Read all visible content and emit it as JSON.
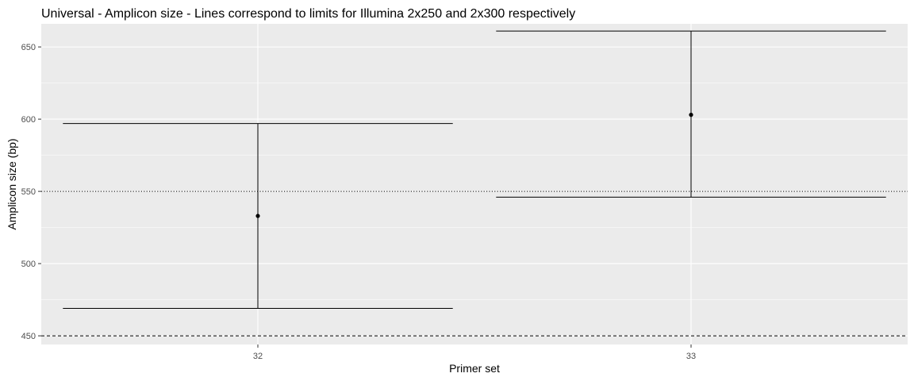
{
  "chart_data": {
    "type": "errorbar",
    "title": "Universal - Amplicon size - Lines correspond to limits for Illumina 2x250 and 2x300 respectively",
    "xlabel": "Primer set",
    "ylabel": "Amplicon size (bp)",
    "categories": [
      "32",
      "33"
    ],
    "points": [
      {
        "x": "32",
        "mean": 533,
        "lower": 469,
        "upper": 597
      },
      {
        "x": "33",
        "mean": 603,
        "lower": 546,
        "upper": 661
      }
    ],
    "reference_lines": [
      {
        "y": 450,
        "style": "dashed"
      },
      {
        "y": 550,
        "style": "dotted"
      }
    ],
    "ylim": [
      444,
      666
    ],
    "yticks": [
      450,
      500,
      550,
      600,
      650
    ],
    "grid": true,
    "colors": {
      "panel": "#ebebeb",
      "grid": "#ffffff",
      "ink": "#000000",
      "tick_text": "#4d4d4d"
    }
  }
}
